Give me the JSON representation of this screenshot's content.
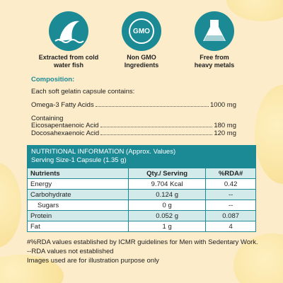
{
  "features": [
    {
      "lines": [
        "Extracted from cold",
        "water fish"
      ]
    },
    {
      "icon_text": "GMO",
      "lines": [
        "Non GMO",
        "Ingredients"
      ]
    },
    {
      "lines": [
        "Free from",
        "heavy metals"
      ]
    }
  ],
  "composition": {
    "heading": "Composition:",
    "intro": "Each soft gelatin capsule contains:",
    "main": {
      "name": "Omega-3 Fatty Acids",
      "amount": "1000 mg"
    },
    "containing": "Containing",
    "items": [
      {
        "name": "Eicosapentaenoic Acid",
        "amount": "180 mg"
      },
      {
        "name": "Docosahexaenoic Acid",
        "amount": "120 mg"
      }
    ]
  },
  "table": {
    "title": "NUTRITIONAL INFORMATION (Approx. Values)",
    "serving": "Serving Size-1 Capsule (1.35 g)",
    "header": [
      "Nutrients",
      "Qty./ Serving",
      "%RDA#"
    ],
    "rows": [
      [
        "Energy",
        "9.704 Kcal",
        "0.42"
      ],
      [
        "Carbohydrate",
        "0.124 g",
        "--"
      ],
      [
        "Sugars",
        "0 g",
        "--"
      ],
      [
        "Protein",
        "0.052 g",
        "0.087"
      ],
      [
        "Fat",
        "1 g",
        "4"
      ]
    ]
  },
  "notes": [
    "#%RDA values established by ICMR guidelines for Men with Sedentary Work.",
    "--RDA values not established",
    "Images  used are for illustration purpose only"
  ]
}
